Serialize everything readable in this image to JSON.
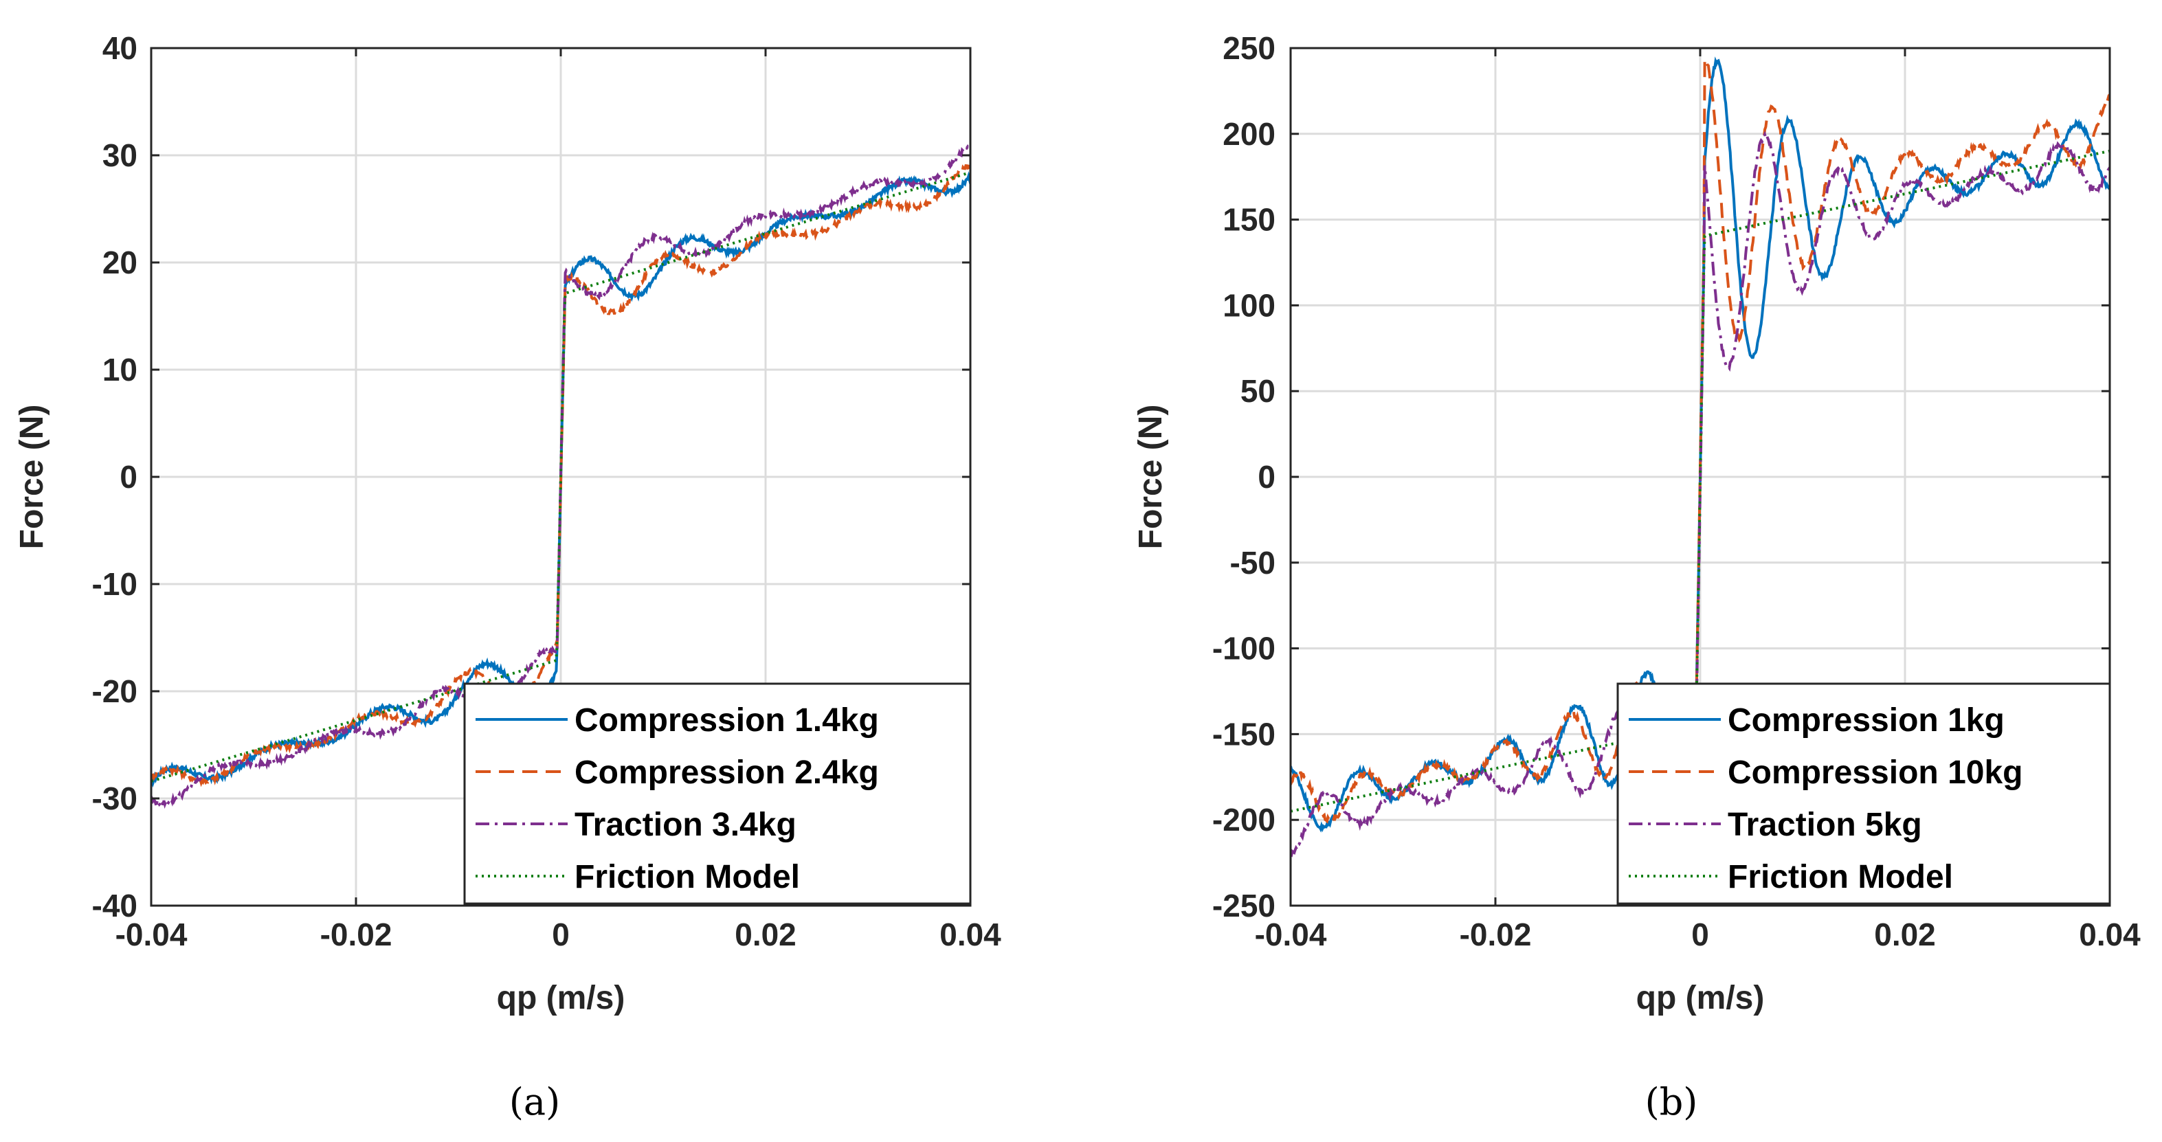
{
  "chart_data": [
    {
      "type": "line",
      "panel": "(a)",
      "xlabel": "qp (m/s)",
      "ylabel": "Force (N)",
      "xlim": [
        -0.04,
        0.04
      ],
      "ylim": [
        -40,
        40
      ],
      "xticks": [
        -0.04,
        -0.02,
        0,
        0.02,
        0.04
      ],
      "xtick_labels": [
        "-0.04",
        "-0.02",
        "0",
        "0.02",
        "0.04"
      ],
      "yticks": [
        -40,
        -30,
        -20,
        -10,
        0,
        10,
        20,
        30,
        40
      ],
      "ytick_labels": [
        "-40",
        "-30",
        "-20",
        "-10",
        "0",
        "10",
        "20",
        "30",
        "40"
      ],
      "grid": true,
      "legend_position": "bottom-right",
      "series": [
        {
          "name": "Compression 1.4kg",
          "color": "#0072BD",
          "style": "solid",
          "base_neg": -17.5,
          "base_pos": 17,
          "slope": 290,
          "amp": 2.6,
          "freq": 620,
          "phase": 0.0
        },
        {
          "name": "Compression 2.4kg",
          "color": "#D95319",
          "style": "dashed",
          "base_neg": -17.5,
          "base_pos": 16,
          "slope": 290,
          "amp": 2.4,
          "freq": 640,
          "phase": 1.2
        },
        {
          "name": "Traction 3.4kg",
          "color": "#7E2F8E",
          "style": "dashdot",
          "base_neg": -18,
          "base_pos": 18,
          "slope": 290,
          "amp": 2.2,
          "freq": 600,
          "phase": 2.4
        },
        {
          "name": "Friction Model",
          "color": "#0F7F12",
          "style": "dotted",
          "base_neg": -17,
          "base_pos": 17,
          "slope": 285,
          "amp": 0,
          "freq": 0,
          "phase": 0
        }
      ]
    },
    {
      "type": "line",
      "panel": "(b)",
      "xlabel": "qp (m/s)",
      "ylabel": "Force (N)",
      "xlim": [
        -0.04,
        0.04
      ],
      "ylim": [
        -250,
        250
      ],
      "xticks": [
        -0.04,
        -0.02,
        0,
        0.02,
        0.04
      ],
      "xtick_labels": [
        "-0.04",
        "-0.02",
        "0",
        "0.02",
        "0.04"
      ],
      "yticks": [
        -250,
        -200,
        -150,
        -100,
        -50,
        0,
        50,
        100,
        150,
        200,
        250
      ],
      "ytick_labels": [
        "-250",
        "-200",
        "-150",
        "-100",
        "-50",
        "0",
        "50",
        "100",
        "150",
        "200",
        "250"
      ],
      "grid": true,
      "legend_position": "bottom-right",
      "series": [
        {
          "name": "Compression 1kg",
          "color": "#0072BD",
          "style": "solid",
          "base_neg": -140,
          "base_pos": 140,
          "slope": 1300,
          "amp": 35,
          "freq": 900,
          "phase": 0.0
        },
        {
          "name": "Compression 10kg",
          "color": "#D95319",
          "style": "dashed",
          "base_neg": -140,
          "base_pos": 150,
          "slope": 1300,
          "amp": 30,
          "freq": 950,
          "phase": 1.1
        },
        {
          "name": "Traction 5kg",
          "color": "#7E2F8E",
          "style": "dashdot",
          "base_neg": -150,
          "base_pos": 135,
          "slope": 1300,
          "amp": 28,
          "freq": 880,
          "phase": 2.2
        },
        {
          "name": "Friction Model",
          "color": "#0F7F12",
          "style": "dotted",
          "base_neg": -145,
          "base_pos": 140,
          "slope": 1250,
          "amp": 0,
          "freq": 0,
          "phase": 0
        }
      ]
    }
  ],
  "captions": [
    "(a)",
    "(b)"
  ]
}
